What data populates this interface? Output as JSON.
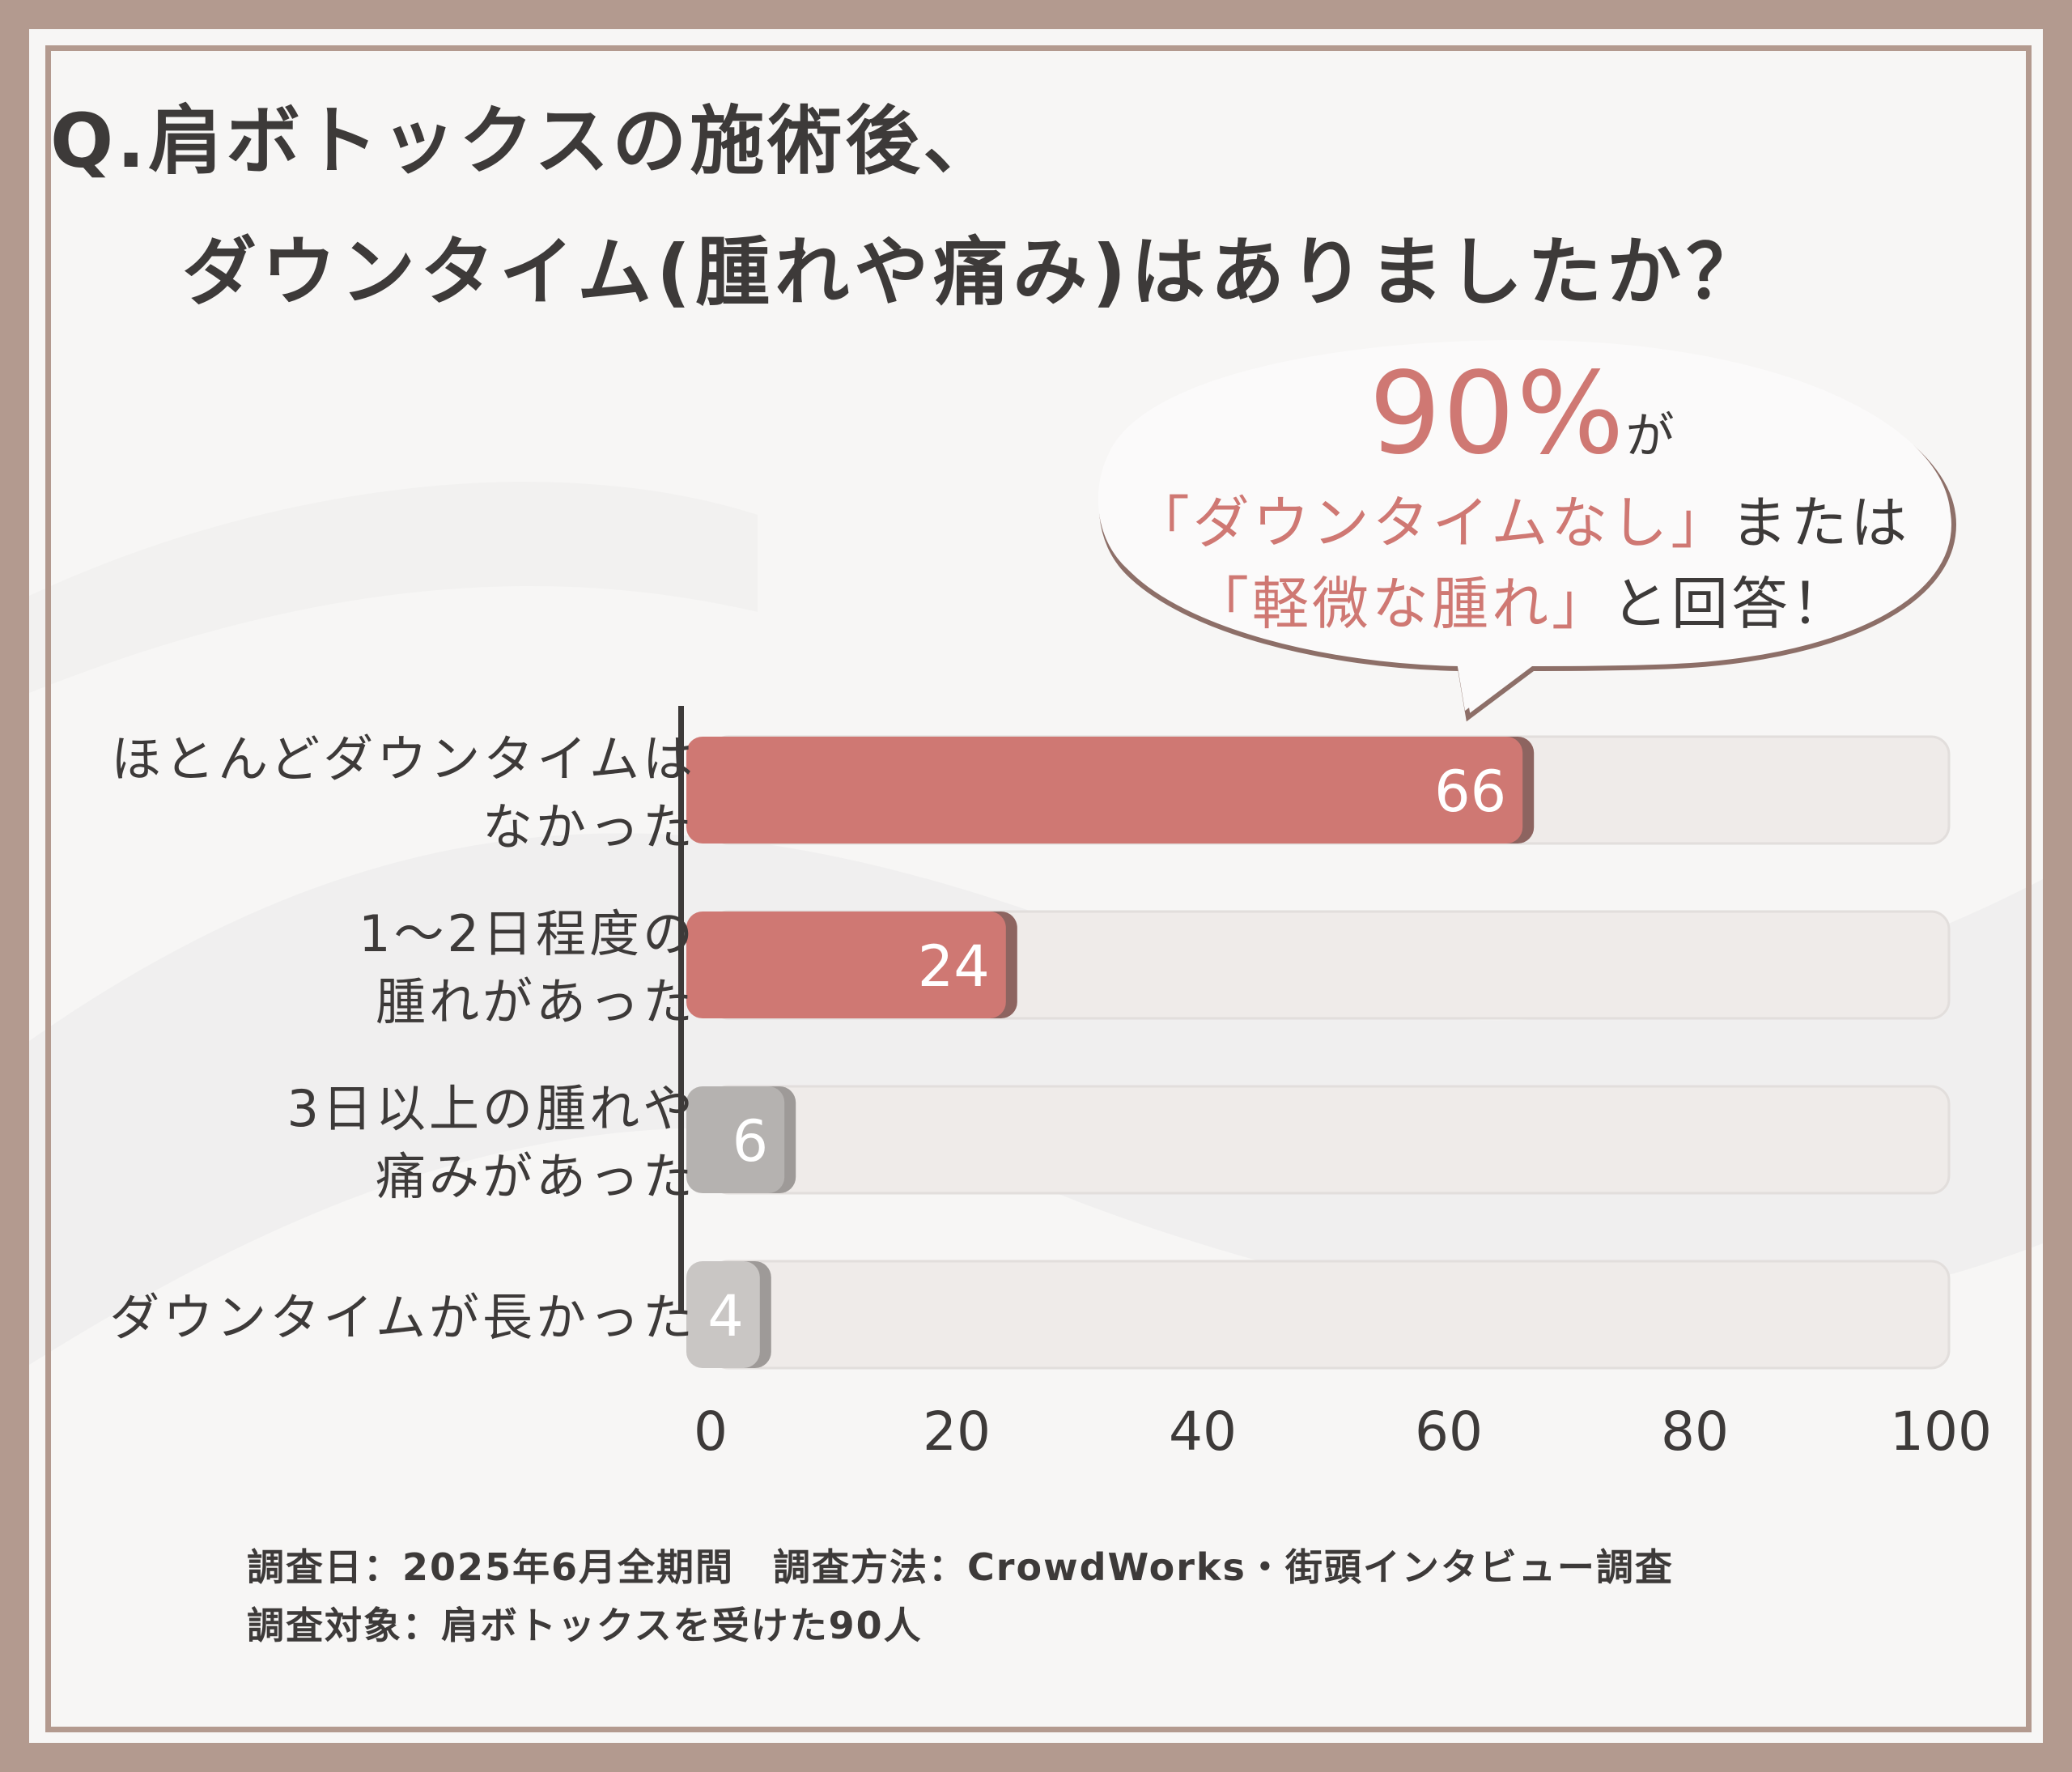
{
  "title": {
    "line1": "Q.肩ボトックスの施術後、",
    "line2": "ダウンタイム(腫れや痛み)はありましたか？"
  },
  "callout": {
    "percent": "90%",
    "ga": "が",
    "line2_highlight": "「ダウンタイムなし」",
    "line2_rest": "または",
    "line3_highlight": "「軽微な腫れ」",
    "line3_rest": "と回答！"
  },
  "chart_data": {
    "type": "bar",
    "orientation": "horizontal",
    "categories": [
      [
        "ほとんどダウンタイムは",
        "なかった"
      ],
      [
        "1〜2日程度の",
        "腫れがあった"
      ],
      [
        "3日以上の腫れや",
        "痛みがあった"
      ],
      [
        "ダウンタイムが長かった"
      ]
    ],
    "values": [
      66,
      24,
      6,
      4
    ],
    "xlim": [
      0,
      100
    ],
    "xticks": [
      "0",
      "20",
      "40",
      "60",
      "80",
      "100"
    ],
    "bar_colors": [
      "#cf7873",
      "#cf7873",
      "#b5b2b0",
      "#c9c6c4"
    ],
    "track_color": "#efebe9",
    "grid": false
  },
  "footer": {
    "line1": "調査日：2025年6月全期間　調査方法：CrowdWorks・街頭インタビュー調査",
    "line2": "調査対象：肩ボトックスを受けた90人"
  }
}
